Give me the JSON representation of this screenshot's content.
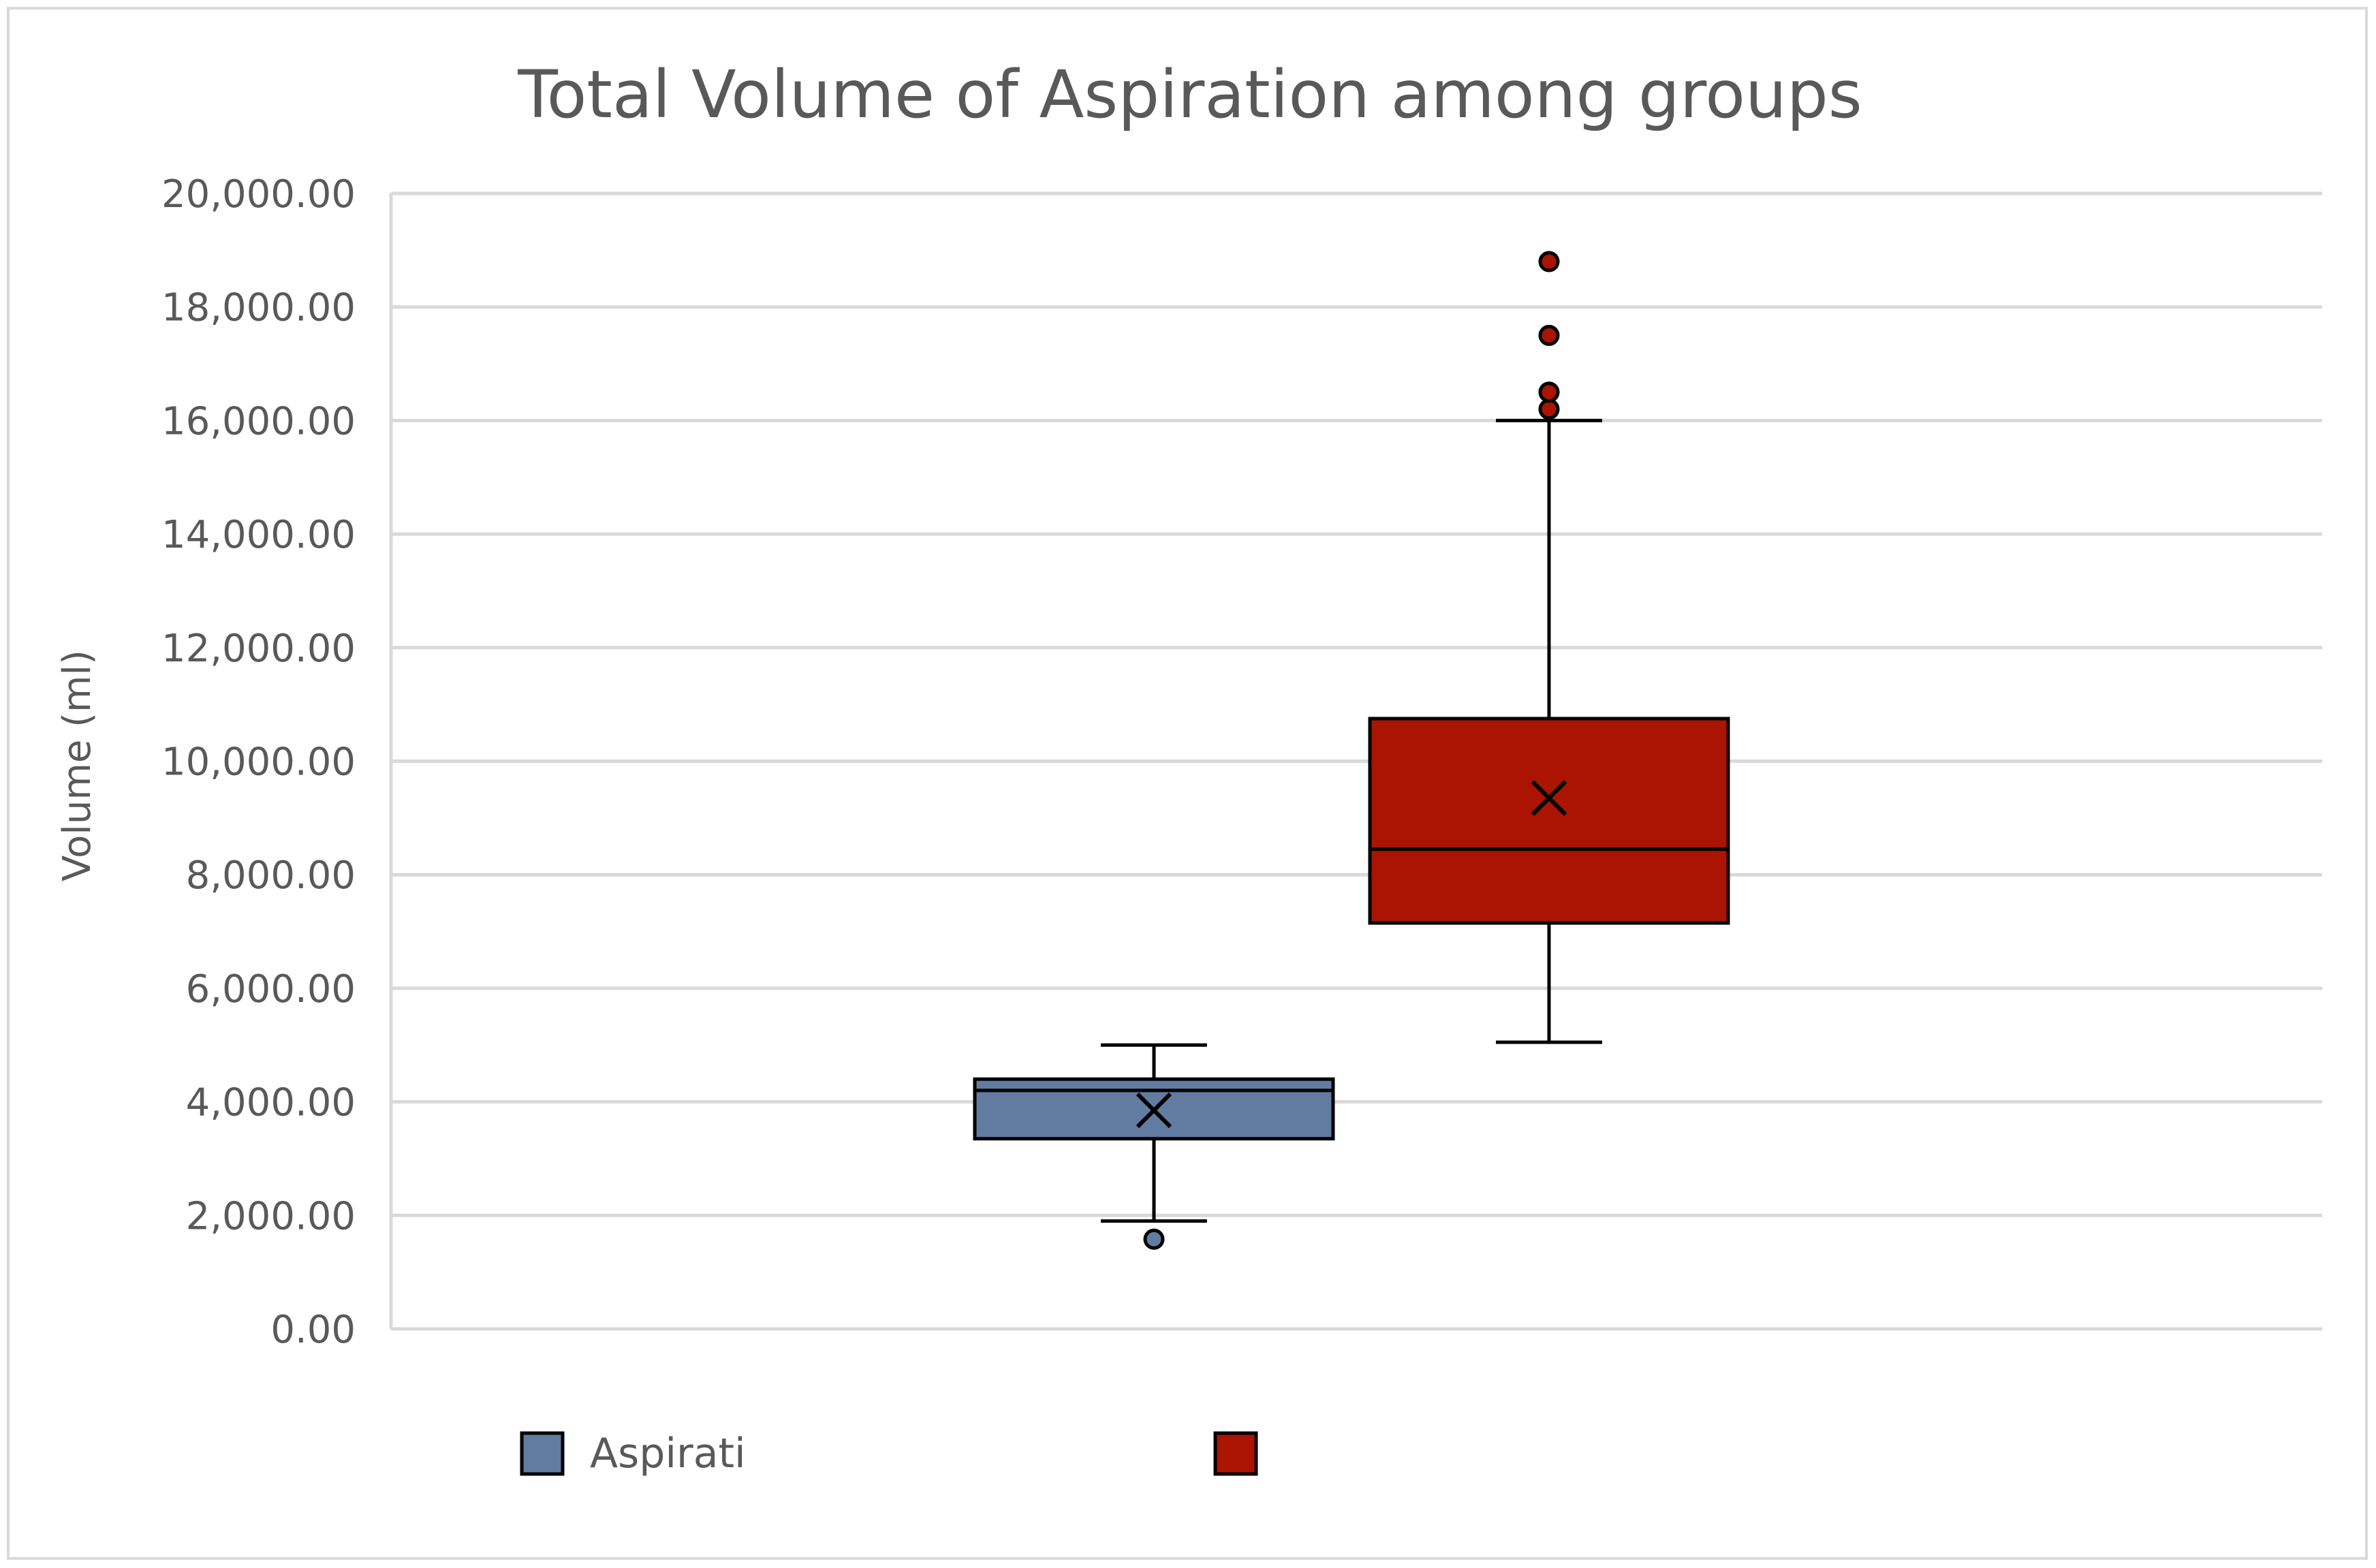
{
  "chart_data": {
    "type": "box",
    "title": "Total Volume of Aspiration among groups",
    "xlabel": "",
    "ylabel": "Volume (ml)",
    "ylim": [
      0,
      20000
    ],
    "y_tick_step": 2000,
    "y_tick_labels": [
      "0.00",
      "2,000.00",
      "4,000.00",
      "6,000.00",
      "8,000.00",
      "10,000.00",
      "12,000.00",
      "14,000.00",
      "16,000.00",
      "18,000.00",
      "20,000.00"
    ],
    "grid": true,
    "legend_position": "bottom",
    "series": [
      {
        "name": "Aspirati",
        "color": "#627ba1",
        "min": 1900,
        "q1": 3350,
        "median": 4200,
        "q3": 4400,
        "max": 5000,
        "mean": 3850,
        "outliers": [
          1580
        ]
      },
      {
        "name": "",
        "color": "#aa1400",
        "min": 5050,
        "q1": 7150,
        "median": 8450,
        "q3": 10750,
        "max": 16000,
        "mean": 9350,
        "outliers": [
          16200,
          16500,
          17500,
          18800
        ]
      }
    ]
  }
}
